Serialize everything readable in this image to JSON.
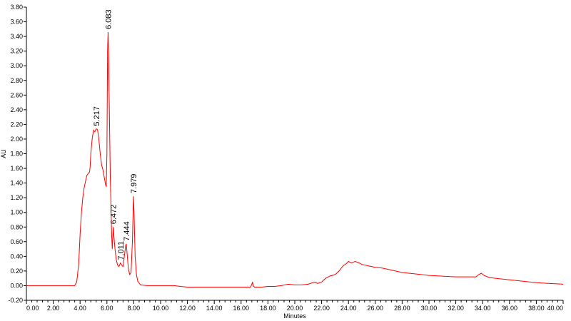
{
  "chart_data": {
    "type": "line",
    "xlabel": "Minutes",
    "ylabel": "AU",
    "xlim": [
      0,
      40
    ],
    "ylim": [
      -0.2,
      3.8
    ],
    "grid": false,
    "line_color": "#ff0000",
    "axis_color": "#000000",
    "x_ticks": [
      "0.00",
      "2.00",
      "4.00",
      "6.00",
      "8.00",
      "10.00",
      "12.00",
      "14.00",
      "16.00",
      "18.00",
      "20.00",
      "22.00",
      "24.00",
      "26.00",
      "28.00",
      "30.00",
      "32.00",
      "34.00",
      "36.00",
      "38.00",
      "40.00"
    ],
    "y_ticks": [
      "-0.20",
      "0.00",
      "0.20",
      "0.40",
      "0.60",
      "0.80",
      "1.00",
      "1.20",
      "1.40",
      "1.60",
      "1.80",
      "2.00",
      "2.20",
      "2.40",
      "2.60",
      "2.80",
      "3.00",
      "3.20",
      "3.40",
      "3.60",
      "3.80"
    ],
    "peaks": [
      {
        "x": 5.217,
        "y": 2.14,
        "label": "5.217"
      },
      {
        "x": 6.083,
        "y": 3.46,
        "label": "6.083"
      },
      {
        "x": 6.472,
        "y": 0.8,
        "label": "6.472"
      },
      {
        "x": 7.011,
        "y": 0.31,
        "label": "7.011"
      },
      {
        "x": 7.444,
        "y": 0.57,
        "label": "7.444"
      },
      {
        "x": 7.979,
        "y": 1.22,
        "label": "7.979"
      }
    ],
    "series": [
      {
        "values": [
          [
            0.0,
            0.0
          ],
          [
            3.0,
            0.0
          ],
          [
            3.6,
            0.0
          ],
          [
            3.75,
            0.05
          ],
          [
            3.9,
            0.3
          ],
          [
            4.0,
            0.7
          ],
          [
            4.1,
            1.0
          ],
          [
            4.2,
            1.2
          ],
          [
            4.3,
            1.33
          ],
          [
            4.4,
            1.42
          ],
          [
            4.5,
            1.5
          ],
          [
            4.6,
            1.53
          ],
          [
            4.7,
            1.55
          ],
          [
            4.75,
            1.62
          ],
          [
            4.8,
            1.8
          ],
          [
            4.9,
            2.0
          ],
          [
            5.0,
            2.12
          ],
          [
            5.1,
            2.1
          ],
          [
            5.2,
            2.14
          ],
          [
            5.3,
            2.13
          ],
          [
            5.4,
            2.0
          ],
          [
            5.5,
            1.8
          ],
          [
            5.6,
            1.65
          ],
          [
            5.7,
            1.58
          ],
          [
            5.8,
            1.48
          ],
          [
            5.9,
            1.38
          ],
          [
            5.95,
            1.35
          ],
          [
            6.0,
            1.8
          ],
          [
            6.05,
            3.2
          ],
          [
            6.083,
            3.46
          ],
          [
            6.12,
            3.2
          ],
          [
            6.18,
            2.4
          ],
          [
            6.25,
            1.5
          ],
          [
            6.3,
            1.1
          ],
          [
            6.35,
            0.7
          ],
          [
            6.4,
            0.5
          ],
          [
            6.45,
            0.7
          ],
          [
            6.472,
            0.8
          ],
          [
            6.5,
            0.72
          ],
          [
            6.6,
            0.5
          ],
          [
            6.7,
            0.35
          ],
          [
            6.8,
            0.28
          ],
          [
            6.9,
            0.26
          ],
          [
            7.011,
            0.31
          ],
          [
            7.1,
            0.28
          ],
          [
            7.2,
            0.26
          ],
          [
            7.3,
            0.4
          ],
          [
            7.4,
            0.55
          ],
          [
            7.444,
            0.57
          ],
          [
            7.5,
            0.45
          ],
          [
            7.6,
            0.22
          ],
          [
            7.7,
            0.15
          ],
          [
            7.8,
            0.18
          ],
          [
            7.9,
            0.6
          ],
          [
            7.979,
            1.22
          ],
          [
            8.02,
            1.0
          ],
          [
            8.1,
            0.4
          ],
          [
            8.2,
            0.15
          ],
          [
            8.3,
            0.06
          ],
          [
            8.5,
            0.01
          ],
          [
            9.0,
            0.0
          ],
          [
            10.0,
            0.0
          ],
          [
            11.0,
            0.0
          ],
          [
            11.5,
            -0.01
          ],
          [
            12.0,
            -0.02
          ],
          [
            13.0,
            -0.02
          ],
          [
            14.0,
            -0.02
          ],
          [
            15.0,
            -0.02
          ],
          [
            16.0,
            -0.02
          ],
          [
            16.7,
            -0.02
          ],
          [
            16.8,
            0.02
          ],
          [
            16.85,
            0.05
          ],
          [
            16.9,
            0.0
          ],
          [
            17.0,
            -0.02
          ],
          [
            17.5,
            -0.02
          ],
          [
            18.0,
            -0.01
          ],
          [
            18.5,
            -0.01
          ],
          [
            19.0,
            0.0
          ],
          [
            19.5,
            0.02
          ],
          [
            20.0,
            0.01
          ],
          [
            20.5,
            0.01
          ],
          [
            21.0,
            0.02
          ],
          [
            21.5,
            0.05
          ],
          [
            21.7,
            0.03
          ],
          [
            22.0,
            0.05
          ],
          [
            22.3,
            0.1
          ],
          [
            22.6,
            0.13
          ],
          [
            23.0,
            0.15
          ],
          [
            23.3,
            0.2
          ],
          [
            23.6,
            0.27
          ],
          [
            23.9,
            0.31
          ],
          [
            24.0,
            0.33
          ],
          [
            24.2,
            0.31
          ],
          [
            24.5,
            0.33
          ],
          [
            24.8,
            0.31
          ],
          [
            25.0,
            0.29
          ],
          [
            25.5,
            0.27
          ],
          [
            26.0,
            0.25
          ],
          [
            26.5,
            0.24
          ],
          [
            27.0,
            0.22
          ],
          [
            27.5,
            0.2
          ],
          [
            28.0,
            0.18
          ],
          [
            29.0,
            0.16
          ],
          [
            30.0,
            0.14
          ],
          [
            31.0,
            0.13
          ],
          [
            32.0,
            0.12
          ],
          [
            33.0,
            0.12
          ],
          [
            33.5,
            0.12
          ],
          [
            33.7,
            0.15
          ],
          [
            33.9,
            0.17
          ],
          [
            34.1,
            0.14
          ],
          [
            34.5,
            0.11
          ],
          [
            35.0,
            0.1
          ],
          [
            36.0,
            0.08
          ],
          [
            37.0,
            0.06
          ],
          [
            38.0,
            0.04
          ],
          [
            39.0,
            0.03
          ],
          [
            40.0,
            0.02
          ]
        ]
      }
    ]
  }
}
